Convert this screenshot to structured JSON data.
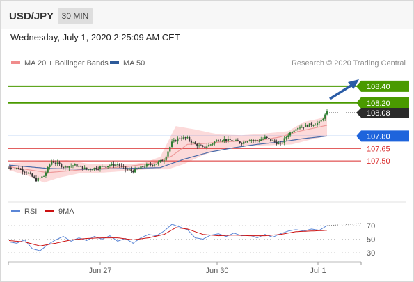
{
  "header": {
    "symbol": "USD/JPY",
    "interval": "30 MIN"
  },
  "datetime": "Wednesday, July 1, 2020 2:25:09 AM CET",
  "legend": {
    "ma20": "MA 20 + Bollinger Bands",
    "ma50": "MA 50",
    "credit": "Research © 2020 Trading Central",
    "rsi": "RSI",
    "rsi_ma": "9MA"
  },
  "colors": {
    "up": "#2e7d32",
    "down": "#333333",
    "green": "#4a9a00",
    "blue": "#1e64dc",
    "red": "#d92b2b",
    "bb_fill": "#fbd4d4",
    "ma20": "#ee9a9a",
    "ma50": "#4a6ba8",
    "rsi": "#5b86d6",
    "rsi_ma": "#cc1111",
    "arrow": "#2a5ca6"
  },
  "chart_data": [
    {
      "type": "candlestick",
      "ylim": [
        107.3,
        108.5
      ],
      "x_labels": [
        "Jun 27",
        "Jun 30",
        "Jul 1"
      ],
      "levels": [
        {
          "value": 108.4,
          "label": "108.40",
          "role": "target",
          "color": "green",
          "style": "badge"
        },
        {
          "value": 108.2,
          "label": "108.20",
          "role": "target",
          "color": "green",
          "style": "badge"
        },
        {
          "value": 107.8,
          "label": "107.80",
          "role": "pivot",
          "color": "blue",
          "style": "badge"
        },
        {
          "value": 107.65,
          "label": "107.65",
          "role": "support",
          "color": "red",
          "style": "text"
        },
        {
          "value": 107.5,
          "label": "107.50",
          "role": "support",
          "color": "red",
          "style": "text"
        }
      ],
      "last_price": 108.08,
      "anchors": [
        [
          0,
          107.42
        ],
        [
          5,
          107.41
        ],
        [
          10,
          107.35
        ],
        [
          14,
          107.27
        ],
        [
          18,
          107.32
        ],
        [
          22,
          107.5
        ],
        [
          28,
          107.43
        ],
        [
          34,
          107.45
        ],
        [
          40,
          107.4
        ],
        [
          46,
          107.42
        ],
        [
          52,
          107.45
        ],
        [
          56,
          107.46
        ],
        [
          60,
          107.4
        ],
        [
          64,
          107.38
        ],
        [
          70,
          107.44
        ],
        [
          76,
          107.47
        ],
        [
          80,
          107.52
        ],
        [
          84,
          107.72
        ],
        [
          88,
          107.78
        ],
        [
          92,
          107.77
        ],
        [
          96,
          107.7
        ],
        [
          100,
          107.66
        ],
        [
          104,
          107.7
        ],
        [
          108,
          107.76
        ],
        [
          114,
          107.75
        ],
        [
          120,
          107.72
        ],
        [
          124,
          107.76
        ],
        [
          128,
          107.74
        ],
        [
          132,
          107.78
        ],
        [
          136,
          107.74
        ],
        [
          140,
          107.7
        ],
        [
          144,
          107.82
        ],
        [
          148,
          107.9
        ],
        [
          152,
          107.92
        ],
        [
          156,
          107.94
        ],
        [
          160,
          107.96
        ],
        [
          164,
          108.08
        ]
      ],
      "ma20": [
        [
          0,
          107.43
        ],
        [
          20,
          107.36
        ],
        [
          40,
          107.4
        ],
        [
          60,
          107.43
        ],
        [
          76,
          107.48
        ],
        [
          84,
          107.56
        ],
        [
          92,
          107.7
        ],
        [
          100,
          107.71
        ],
        [
          110,
          107.73
        ],
        [
          120,
          107.74
        ],
        [
          130,
          107.75
        ],
        [
          140,
          107.79
        ],
        [
          150,
          107.86
        ],
        [
          158,
          107.9
        ],
        [
          164,
          107.93
        ]
      ],
      "bb_upper": [
        [
          0,
          107.47
        ],
        [
          10,
          107.49
        ],
        [
          20,
          107.5
        ],
        [
          30,
          107.51
        ],
        [
          40,
          107.47
        ],
        [
          50,
          107.46
        ],
        [
          60,
          107.46
        ],
        [
          70,
          107.48
        ],
        [
          78,
          107.55
        ],
        [
          86,
          107.92
        ],
        [
          96,
          107.88
        ],
        [
          108,
          107.82
        ],
        [
          120,
          107.81
        ],
        [
          132,
          107.83
        ],
        [
          144,
          107.86
        ],
        [
          152,
          107.97
        ],
        [
          160,
          108.01
        ],
        [
          164,
          108.05
        ]
      ],
      "bb_lower": [
        [
          0,
          107.39
        ],
        [
          10,
          107.32
        ],
        [
          18,
          107.24
        ],
        [
          26,
          107.3
        ],
        [
          36,
          107.35
        ],
        [
          48,
          107.36
        ],
        [
          60,
          107.38
        ],
        [
          72,
          107.4
        ],
        [
          82,
          107.4
        ],
        [
          90,
          107.46
        ],
        [
          100,
          107.57
        ],
        [
          112,
          107.66
        ],
        [
          124,
          107.68
        ],
        [
          136,
          107.69
        ],
        [
          146,
          107.7
        ],
        [
          156,
          107.76
        ],
        [
          164,
          107.8
        ]
      ],
      "ma50": [
        [
          0,
          107.45
        ],
        [
          20,
          107.41
        ],
        [
          40,
          107.4
        ],
        [
          60,
          107.41
        ],
        [
          78,
          107.42
        ],
        [
          90,
          107.52
        ],
        [
          104,
          107.61
        ],
        [
          116,
          107.66
        ],
        [
          128,
          107.7
        ],
        [
          140,
          107.73
        ],
        [
          152,
          107.77
        ],
        [
          164,
          107.8
        ]
      ]
    },
    {
      "type": "line",
      "title": "RSI",
      "ylim": [
        20,
        80
      ],
      "ticks": [
        70,
        50,
        30
      ],
      "series": [
        {
          "name": "RSI",
          "points": [
            [
              0,
              46
            ],
            [
              4,
              44
            ],
            [
              8,
              49
            ],
            [
              12,
              36
            ],
            [
              16,
              33
            ],
            [
              20,
              42
            ],
            [
              24,
              49
            ],
            [
              28,
              54
            ],
            [
              32,
              47
            ],
            [
              36,
              52
            ],
            [
              40,
              48
            ],
            [
              44,
              54
            ],
            [
              48,
              50
            ],
            [
              52,
              55
            ],
            [
              56,
              47
            ],
            [
              60,
              51
            ],
            [
              64,
              44
            ],
            [
              68,
              52
            ],
            [
              72,
              57
            ],
            [
              76,
              55
            ],
            [
              80,
              62
            ],
            [
              84,
              72
            ],
            [
              88,
              68
            ],
            [
              92,
              64
            ],
            [
              96,
              52
            ],
            [
              100,
              50
            ],
            [
              104,
              56
            ],
            [
              108,
              58
            ],
            [
              112,
              54
            ],
            [
              116,
              59
            ],
            [
              120,
              55
            ],
            [
              124,
              56
            ],
            [
              128,
              52
            ],
            [
              132,
              57
            ],
            [
              136,
              53
            ],
            [
              140,
              58
            ],
            [
              144,
              62
            ],
            [
              148,
              64
            ],
            [
              152,
              62
            ],
            [
              156,
              65
            ],
            [
              160,
              63
            ],
            [
              164,
              70
            ]
          ]
        },
        {
          "name": "9MA",
          "points": [
            [
              0,
              48
            ],
            [
              8,
              46
            ],
            [
              16,
              40
            ],
            [
              24,
              44
            ],
            [
              32,
              49
            ],
            [
              40,
              51
            ],
            [
              48,
              52
            ],
            [
              56,
              52
            ],
            [
              64,
              49
            ],
            [
              72,
              52
            ],
            [
              80,
              57
            ],
            [
              86,
              67
            ],
            [
              92,
              65
            ],
            [
              100,
              57
            ],
            [
              108,
              55
            ],
            [
              116,
              56
            ],
            [
              124,
              55
            ],
            [
              132,
              55
            ],
            [
              140,
              57
            ],
            [
              148,
              61
            ],
            [
              156,
              62
            ],
            [
              164,
              63
            ]
          ]
        }
      ]
    }
  ]
}
